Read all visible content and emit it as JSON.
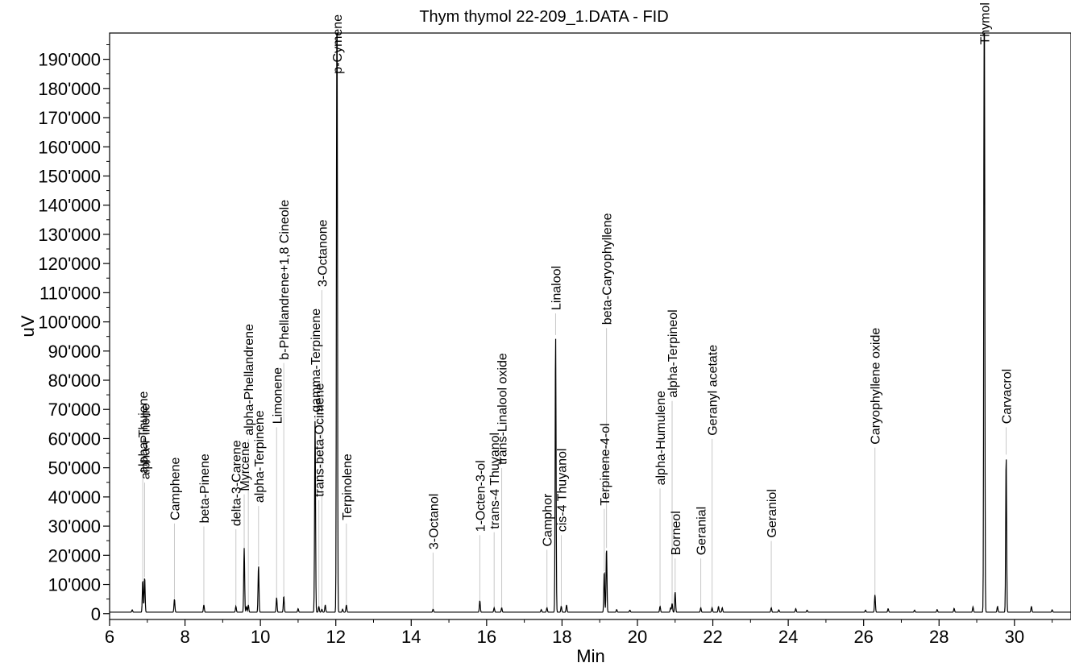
{
  "chart_data": {
    "type": "line",
    "title": "Thym thymol 22-209_1.DATA - FID",
    "xlabel": "Min",
    "ylabel": "uV",
    "xlim": [
      6,
      31.5
    ],
    "ylim": [
      -2000,
      199000
    ],
    "x_ticks": [
      6,
      8,
      10,
      12,
      14,
      16,
      18,
      20,
      22,
      24,
      26,
      28,
      30
    ],
    "y_ticks": [
      0,
      10000,
      20000,
      30000,
      40000,
      50000,
      60000,
      70000,
      80000,
      90000,
      100000,
      110000,
      120000,
      130000,
      140000,
      150000,
      160000,
      170000,
      180000,
      190000
    ],
    "y_tick_labels": [
      "0",
      "10'000",
      "20'000",
      "30'000",
      "40'000",
      "50'000",
      "60'000",
      "70'000",
      "80'000",
      "90'000",
      "100'000",
      "110'000",
      "120'000",
      "130'000",
      "140'000",
      "150'000",
      "160'000",
      "170'000",
      "180'000",
      "190'000"
    ],
    "grid": false,
    "line_color": "#000000",
    "baseline": 500,
    "peaks": [
      {
        "name": "alpha-Thujene",
        "rt": 6.88,
        "height": 11000,
        "label_y": 48000
      },
      {
        "name": "alpha-Pinene",
        "rt": 6.93,
        "height": 12000,
        "label_y": 46000
      },
      {
        "name": "Camphene",
        "rt": 7.72,
        "height": 4500,
        "label_y": 32000
      },
      {
        "name": "beta-Pinene",
        "rt": 8.5,
        "height": 2500,
        "label_y": 31000
      },
      {
        "name": "delta-3-Carene",
        "rt": 9.35,
        "height": 2000,
        "label_y": 30000
      },
      {
        "name": "Myrcene",
        "rt": 9.57,
        "height": 22000,
        "label_y": 42000
      },
      {
        "name": "alpha-Phellandrene",
        "rt": 9.68,
        "height": 2500,
        "label_y": 61000
      },
      {
        "name": "alpha-Terpinene",
        "rt": 9.95,
        "height": 16000,
        "label_y": 38000
      },
      {
        "name": "Limonene",
        "rt": 10.43,
        "height": 5000,
        "label_y": 65000
      },
      {
        "name": "b-Phellandrene+1,8 Cineole",
        "rt": 10.62,
        "height": 5500,
        "label_y": 87000
      },
      {
        "name": "gamma-Terpinene",
        "rt": 11.45,
        "height": 66000,
        "label_y": 69000
      },
      {
        "name": "trans-beta-Ocimene",
        "rt": 11.55,
        "height": 2000,
        "label_y": 40000
      },
      {
        "name": "3-Octanone",
        "rt": 11.63,
        "height": 1000,
        "label_y": 112000
      },
      {
        "name": "p-Cymene",
        "rt": 12.03,
        "height": 250000,
        "label_y": 185000
      },
      {
        "name": "Terpinolene",
        "rt": 12.28,
        "height": 2500,
        "label_y": 32000
      },
      {
        "name": "3-Octanol",
        "rt": 14.58,
        "height": 1000,
        "label_y": 22000
      },
      {
        "name": "1-Octen-3-ol",
        "rt": 15.82,
        "height": 4000,
        "label_y": 28000
      },
      {
        "name": "trans-4 Thuyanol",
        "rt": 16.2,
        "height": 1500,
        "label_y": 29000
      },
      {
        "name": "trans-Linalool oxide",
        "rt": 16.4,
        "height": 1500,
        "label_y": 51000
      },
      {
        "name": "Camphor",
        "rt": 17.6,
        "height": 1500,
        "label_y": 23000
      },
      {
        "name": "Linalool",
        "rt": 17.83,
        "height": 95000,
        "label_y": 104000
      },
      {
        "name": "cis-4 Thuyanol",
        "rt": 17.98,
        "height": 2000,
        "label_y": 28000
      },
      {
        "name": "Terpinene-4-ol",
        "rt": 19.12,
        "height": 14000,
        "label_y": 37000
      },
      {
        "name": "beta-Caryophyllene",
        "rt": 19.18,
        "height": 22000,
        "label_y": 99000
      },
      {
        "name": "alpha-Humulene",
        "rt": 20.6,
        "height": 2000,
        "label_y": 44000
      },
      {
        "name": "Borneol",
        "rt": 21.0,
        "height": 7000,
        "label_y": 20000
      },
      {
        "name": "alpha-Terpineol",
        "rt": 20.92,
        "height": 3000,
        "label_y": 74000
      },
      {
        "name": "Geranial",
        "rt": 21.68,
        "height": 1500,
        "label_y": 20000
      },
      {
        "name": "Geranyl acetate",
        "rt": 21.98,
        "height": 1500,
        "label_y": 61000
      },
      {
        "name": "Geraniol",
        "rt": 23.55,
        "height": 1500,
        "label_y": 26000
      },
      {
        "name": "Caryophyllene oxide",
        "rt": 26.3,
        "height": 6000,
        "label_y": 58000
      },
      {
        "name": "Thymol",
        "rt": 29.2,
        "height": 250000,
        "label_y": 195000
      },
      {
        "name": "Carvacrol",
        "rt": 29.78,
        "height": 54000,
        "label_y": 65000
      }
    ],
    "minor_peaks": [
      {
        "rt": 6.6,
        "height": 800
      },
      {
        "rt": 9.63,
        "height": 2000
      },
      {
        "rt": 11.0,
        "height": 1200
      },
      {
        "rt": 11.72,
        "height": 2500
      },
      {
        "rt": 12.18,
        "height": 1000
      },
      {
        "rt": 17.45,
        "height": 900
      },
      {
        "rt": 18.12,
        "height": 2500
      },
      {
        "rt": 19.45,
        "height": 900
      },
      {
        "rt": 19.8,
        "height": 700
      },
      {
        "rt": 20.88,
        "height": 1500
      },
      {
        "rt": 22.15,
        "height": 2000
      },
      {
        "rt": 22.25,
        "height": 1500
      },
      {
        "rt": 23.75,
        "height": 800
      },
      {
        "rt": 24.2,
        "height": 1200
      },
      {
        "rt": 24.5,
        "height": 700
      },
      {
        "rt": 26.05,
        "height": 700
      },
      {
        "rt": 26.65,
        "height": 1200
      },
      {
        "rt": 27.35,
        "height": 700
      },
      {
        "rt": 27.95,
        "height": 900
      },
      {
        "rt": 28.4,
        "height": 1300
      },
      {
        "rt": 28.9,
        "height": 1800
      },
      {
        "rt": 29.55,
        "height": 2000
      },
      {
        "rt": 30.45,
        "height": 2000
      },
      {
        "rt": 31.0,
        "height": 800
      }
    ]
  }
}
